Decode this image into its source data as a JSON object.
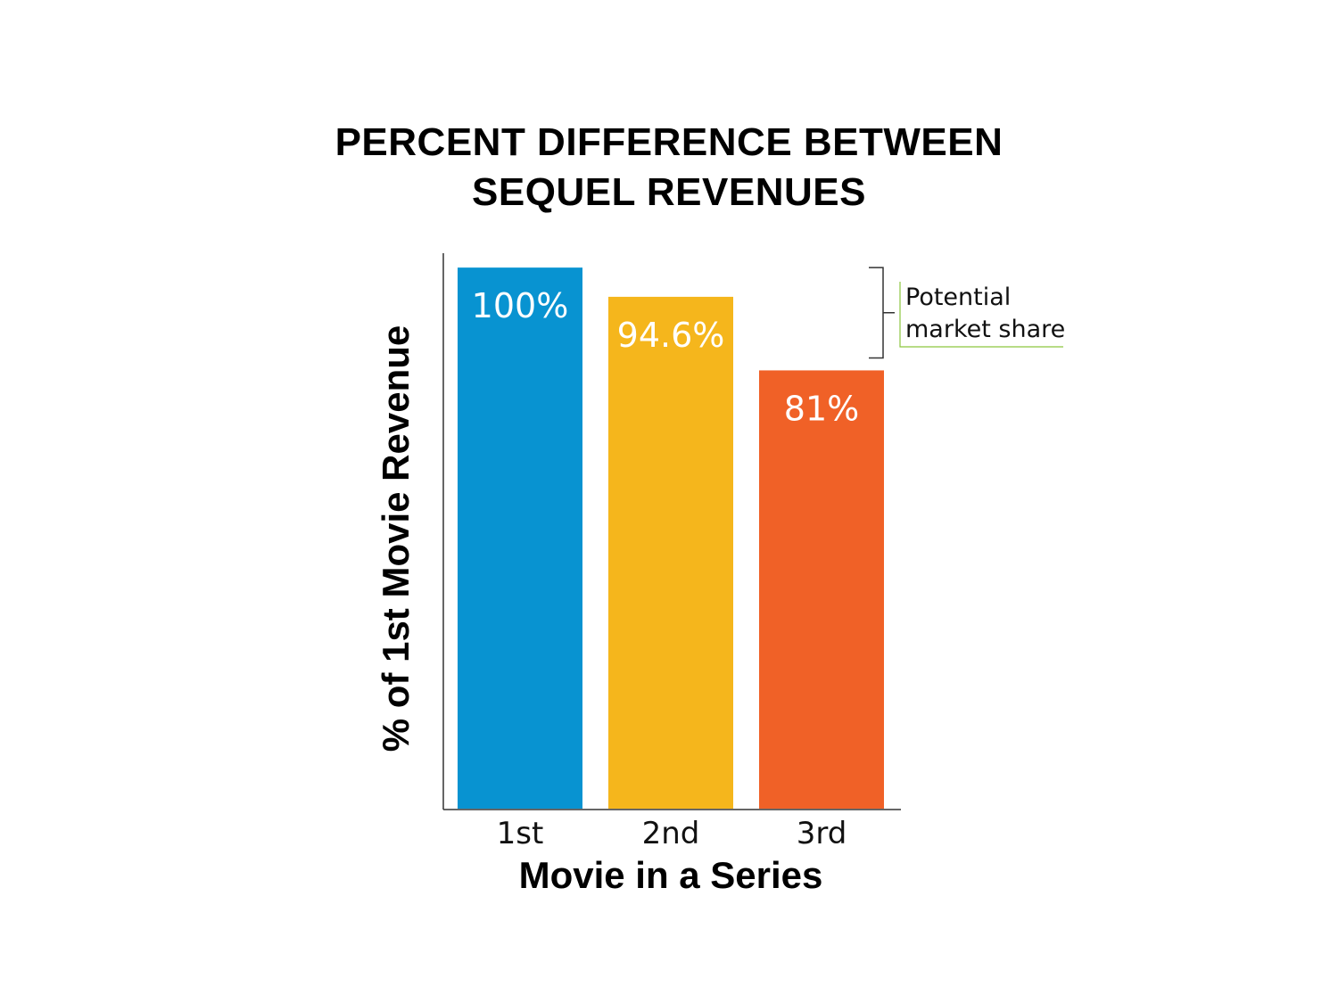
{
  "chart_data": {
    "type": "bar",
    "title_lines": [
      "PERCENT DIFFERENCE BETWEEN",
      "SEQUEL REVENUES"
    ],
    "categories": [
      "1st",
      "2nd",
      "3rd"
    ],
    "values": [
      100,
      94.6,
      81
    ],
    "value_labels": [
      "100%",
      "94.6%",
      "81%"
    ],
    "colors": [
      "#0893d1",
      "#f5b61c",
      "#f06127"
    ],
    "xlabel": "Movie in a Series",
    "ylabel": "% of 1st Movie Revenue",
    "ylim": [
      0,
      102
    ],
    "grid": false,
    "annotation": {
      "lines": [
        "Potential",
        "market share"
      ],
      "spans_values": [
        100,
        81
      ],
      "underline_color": "#8cc63f"
    }
  }
}
